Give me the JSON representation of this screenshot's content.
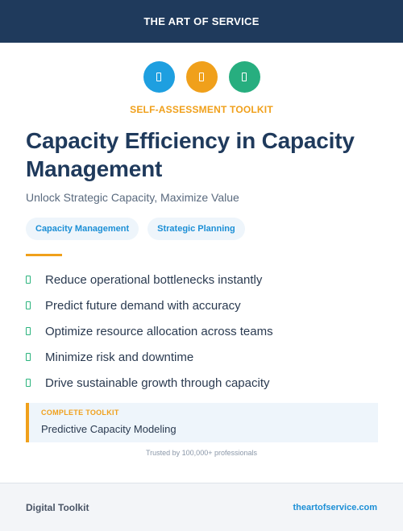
{
  "header": {
    "title": "THE ART OF SERVICE"
  },
  "icons": [
    {
      "name": "rectangle-icon",
      "color": "#1e9fe0"
    },
    {
      "name": "rectangle-icon",
      "color": "#f0a01b"
    },
    {
      "name": "rectangle-icon",
      "color": "#27ae7f"
    }
  ],
  "kicker": "SELF-ASSESSMENT TOOLKIT",
  "title": "Capacity Efficiency in Capacity Management",
  "subtitle": "Unlock Strategic Capacity, Maximize Value",
  "tags": [
    "Capacity Management",
    "Strategic Planning"
  ],
  "benefits": [
    "Reduce operational bottlenecks instantly",
    "Predict future demand with accuracy",
    "Optimize resource allocation across teams",
    "Minimize risk and downtime",
    "Drive sustainable growth through capacity"
  ],
  "callout": {
    "label": "COMPLETE TOOLKIT",
    "text": "Predictive Capacity Modeling"
  },
  "trusted": "Trusted by 100,000+ professionals",
  "footer": {
    "left": "Digital Toolkit",
    "right": "theartofservice.com"
  },
  "colors": {
    "navy": "#1f3a5c",
    "accent": "#f0a01b",
    "blue": "#1c8fd6",
    "green": "#2bb37d"
  }
}
